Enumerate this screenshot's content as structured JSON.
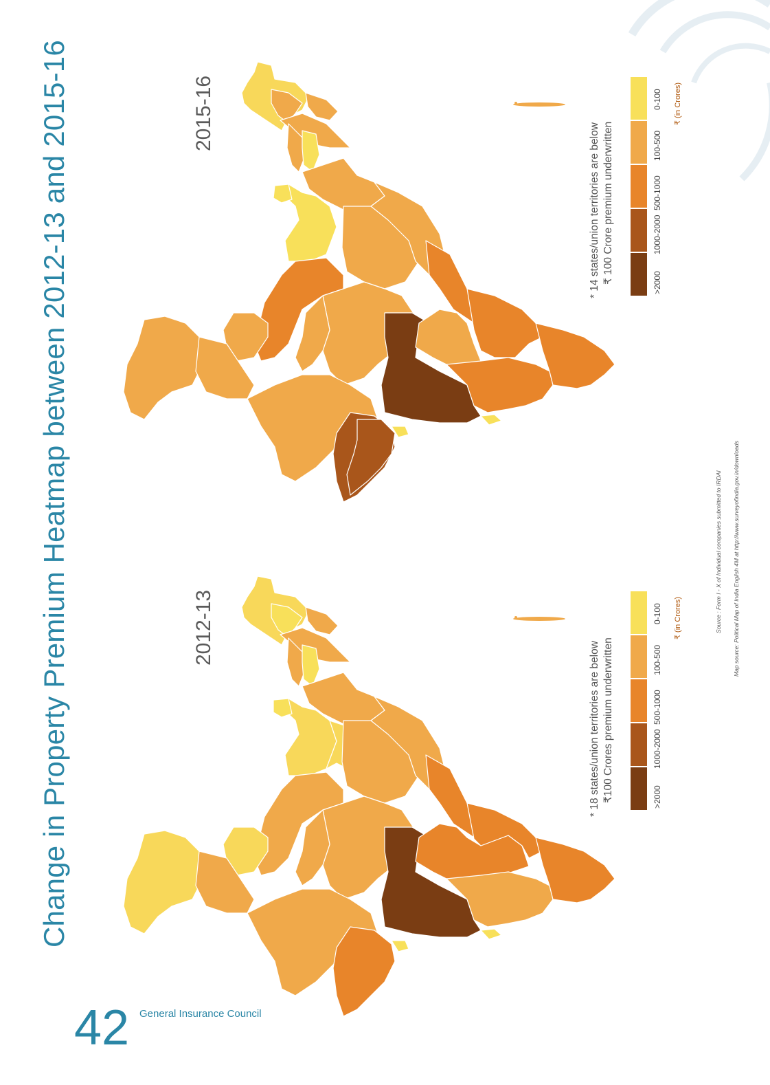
{
  "title": "Change in Property Premium Heatmap between 2012-13 and 2015-16",
  "page_number": "42",
  "publisher": "General Insurance Council",
  "colors": {
    "accent": "#2a86a6",
    "scale": [
      "#f8e05a",
      "#f0a94a",
      "#e8852a",
      "#a9561b",
      "#7a3d13"
    ]
  },
  "maps": [
    {
      "year": "2015-16",
      "note_line1": "* 14 states/union territories are below",
      "note_line2": "₹ 100 Crore premium underwritten"
    },
    {
      "year": "2012-13",
      "note_line1": "* 18 states/union territories are below",
      "note_line2": "₹100 Crores premium underwritten"
    }
  ],
  "legend": {
    "labels": [
      "0-100",
      "100-500",
      "500-1000",
      "1000-2000",
      ">2000"
    ],
    "unit": "₹ (in Crores)"
  },
  "sources": {
    "source": "Source : Form I - X of Individual companies submitted to IRDAI",
    "map_source": "Map source: Political Map of India English 4M at http://www.surveyofindia.gov.in/downloads"
  }
}
